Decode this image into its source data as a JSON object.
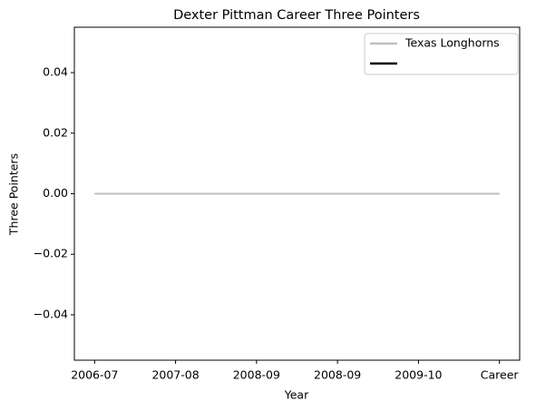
{
  "chart_data": {
    "type": "line",
    "title": "Dexter Pittman Career Three Pointers",
    "xlabel": "Year",
    "ylabel": "Three Pointers",
    "categories": [
      "2006-07",
      "2007-08",
      "2008-09",
      "2008-09",
      "2009-10",
      "Career"
    ],
    "series": [
      {
        "name": "Texas Longhorns",
        "color": "#bfbfbf",
        "values": [
          0,
          0,
          0,
          0,
          0,
          0
        ]
      },
      {
        "color": "#000000",
        "values": [
          null,
          null,
          null,
          null,
          null,
          null
        ]
      }
    ],
    "ylim": [
      -0.055,
      0.055
    ],
    "yticks": [
      {
        "value": -0.04,
        "label": "−0.04"
      },
      {
        "value": -0.02,
        "label": "−0.02"
      },
      {
        "value": 0,
        "label": "0.00"
      },
      0.02,
      0.04
    ],
    "legend": "upper right"
  }
}
